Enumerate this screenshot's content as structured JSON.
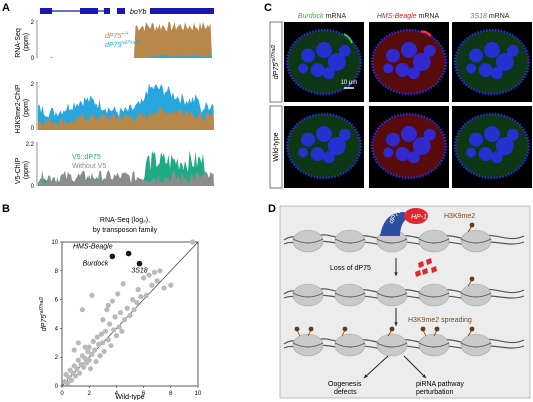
{
  "colors": {
    "gene": "#1818b0",
    "mutant": "#b8874a",
    "wildtype": "#27a7de",
    "h3k9_mut": "#27a7de",
    "h3k9_wt": "#b8874a",
    "v5": "#1faa86",
    "nov5": "#8c8c8c",
    "scatter": "#b9b9b9",
    "highlight": "#1a1a1a",
    "green_label": "#3aa83a",
    "red_label": "#d42020",
    "h3k9_label": "#7a4a1a",
    "dp75_protein": "#2d4fa3",
    "hp1_protein": "#e3262e",
    "panel_d_bg": "#ececec",
    "nucleosome": "#c9c9c9",
    "dna": "#555555",
    "mark": "#6b3a14",
    "micro_bg": "#000000",
    "micro_blue": "#2a2ff0",
    "micro_green": "#1d7a2e",
    "micro_red": "#c01818"
  },
  "panelA": {
    "letter": "A",
    "gene_label": "boYb",
    "rnaseq": {
      "ylabel": "RNA-Seq\n(ppm)",
      "ymax": "2",
      "ymin": "0",
      "legend": [
        {
          "name": "dP75+/+",
          "base": "dP75",
          "sup": "+/+"
        },
        {
          "name": "dP75ral7/ral2",
          "base": "dP75",
          "sup": "ral7/ral2"
        }
      ]
    },
    "h3k9": {
      "ylabel": "H3K9me2-ChIP\n(ppm)",
      "ymax": "2",
      "ymin": "0"
    },
    "v5": {
      "ylabel": "V5-ChIP\n(ppm)",
      "ymax": "2.2",
      "ymin": "0",
      "legend": [
        {
          "name": "V5::dP75"
        },
        {
          "name": "Without V5"
        }
      ]
    }
  },
  "panelB": {
    "letter": "B",
    "title_lines": [
      "RNA-Seq (log₂),",
      "by transposon family"
    ],
    "xlabel": "Wild-type",
    "ylabel_base": "dP75",
    "ylabel_sup": "ral7/ral2",
    "ticks": [
      "0",
      "2",
      "4",
      "6",
      "8",
      "10"
    ]
  },
  "chart_data": {
    "type": "scatter",
    "title": "RNA-Seq (log₂), by transposon family",
    "xlabel": "Wild-type",
    "ylabel": "dP75 ral7/ral2",
    "xlim": [
      0,
      10
    ],
    "ylim": [
      0,
      10
    ],
    "diagonal": true,
    "highlighted": [
      {
        "name": "HMS-Beagle",
        "x": 4.9,
        "y": 9.2
      },
      {
        "name": "Burdock",
        "x": 3.7,
        "y": 9.0
      },
      {
        "name": "3S18",
        "x": 5.7,
        "y": 8.5
      }
    ],
    "points": [
      [
        0.2,
        0.3
      ],
      [
        0.3,
        0.8
      ],
      [
        0.4,
        0.2
      ],
      [
        0.5,
        0.6
      ],
      [
        0.6,
        1.1
      ],
      [
        0.7,
        0.4
      ],
      [
        0.8,
        0.9
      ],
      [
        0.9,
        1.4
      ],
      [
        1.0,
        0.7
      ],
      [
        1.1,
        1.2
      ],
      [
        1.2,
        1.8
      ],
      [
        1.3,
        0.9
      ],
      [
        1.4,
        1.5
      ],
      [
        1.5,
        2.1
      ],
      [
        1.6,
        1.3
      ],
      [
        1.7,
        1.9
      ],
      [
        1.8,
        1.6
      ],
      [
        1.9,
        2.4
      ],
      [
        2.0,
        1.8
      ],
      [
        2.0,
        2.7
      ],
      [
        2.1,
        1.2
      ],
      [
        2.2,
        2.2
      ],
      [
        2.3,
        3.1
      ],
      [
        2.4,
        2.5
      ],
      [
        2.5,
        1.7
      ],
      [
        2.6,
        3.4
      ],
      [
        2.7,
        2.9
      ],
      [
        2.8,
        2.1
      ],
      [
        2.9,
        3.6
      ],
      [
        3.0,
        3.0
      ],
      [
        3.0,
        4.6
      ],
      [
        3.1,
        2.4
      ],
      [
        3.2,
        3.8
      ],
      [
        3.3,
        5.3
      ],
      [
        3.4,
        3.2
      ],
      [
        3.5,
        4.3
      ],
      [
        3.6,
        2.8
      ],
      [
        3.7,
        5.9
      ],
      [
        3.8,
        3.9
      ],
      [
        3.9,
        4.8
      ],
      [
        4.0,
        3.5
      ],
      [
        4.1,
        6.4
      ],
      [
        4.2,
        4.1
      ],
      [
        4.3,
        5.1
      ],
      [
        4.4,
        3.8
      ],
      [
        4.5,
        7.1
      ],
      [
        4.6,
        4.6
      ],
      [
        4.8,
        5.4
      ],
      [
        5.0,
        4.9
      ],
      [
        5.2,
        6.0
      ],
      [
        5.3,
        5.3
      ],
      [
        5.5,
        5.8
      ],
      [
        5.8,
        6.2
      ],
      [
        6.0,
        7.5
      ],
      [
        6.2,
        6.3
      ],
      [
        6.4,
        7.7
      ],
      [
        6.6,
        7.0
      ],
      [
        6.8,
        7.9
      ],
      [
        7.0,
        7.3
      ],
      [
        7.2,
        8.0
      ],
      [
        7.5,
        6.8
      ],
      [
        8.0,
        7.0
      ],
      [
        9.6,
        10.0
      ],
      [
        1.5,
        5.3
      ],
      [
        2.2,
        6.3
      ],
      [
        1.2,
        3.0
      ],
      [
        0.9,
        2.5
      ],
      [
        1.7,
        2.7
      ],
      [
        3.4,
        5.6
      ],
      [
        5.6,
        6.7
      ]
    ]
  },
  "panelC": {
    "letter": "C",
    "columns": [
      {
        "title": "Burdock",
        "suffix": " mRNA"
      },
      {
        "title": "HMS-Beagle",
        "suffix": " mRNA"
      },
      {
        "title": "3S18",
        "suffix": " mRNA"
      }
    ],
    "rows": [
      {
        "label_base": "dP75",
        "label_sup": "ral7/ral2"
      },
      {
        "label": "Wild-type"
      }
    ],
    "scalebar": "10 μm"
  },
  "panelD": {
    "letter": "D",
    "labels": {
      "dp75": "dP75",
      "hp1": "HP-1",
      "h3k9me2": "H3K9me2",
      "loss": "Loss of dP75",
      "spreading": "H3K9me2 spreading",
      "oogenesis": [
        "Oogenesis",
        "defects"
      ],
      "pirna": [
        "piRNA pathway",
        "perturbation"
      ]
    }
  }
}
